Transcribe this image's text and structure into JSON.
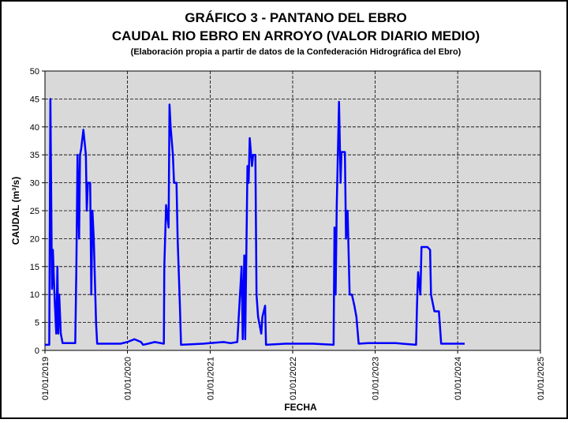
{
  "chart_data": {
    "type": "line",
    "title": "GRÁFICO 3 - PANTANO DEL EBRO",
    "subtitle": "CAUDAL RIO EBRO EN ARROYO (VALOR DIARIO MEDIO)",
    "note": "(Elaboración propia a partir de datos de la Confederación Hidrográfica del Ebro)",
    "x_label": "FECHA",
    "y_label": "CAUDAL  (m³/s)",
    "color": "#0000ff",
    "grid": true,
    "xlim": [
      "2019-01-01",
      "2025-01-01"
    ],
    "xticks": [
      {
        "value": "2019-01-01",
        "label": "01/01/2019"
      },
      {
        "value": "2020-01-01",
        "label": "01/01/2020"
      },
      {
        "value": "2021-01-01",
        "label": "01/01/2021"
      },
      {
        "value": "2022-01-01",
        "label": "01/01/2022"
      },
      {
        "value": "2023-01-01",
        "label": "01/01/2023"
      },
      {
        "value": "2024-01-01",
        "label": "01/01/2024"
      },
      {
        "value": "2025-01-01",
        "label": "01/01/2025"
      }
    ],
    "ylim": [
      0,
      50
    ],
    "yticks": [
      0,
      5,
      10,
      15,
      20,
      25,
      30,
      35,
      40,
      45,
      50
    ],
    "x": [
      "2019-01-01",
      "2019-01-20",
      "2019-01-25",
      "2019-02-01",
      "2019-02-05",
      "2019-02-12",
      "2019-02-20",
      "2019-02-25",
      "2019-03-01",
      "2019-03-05",
      "2019-03-12",
      "2019-03-20",
      "2019-05-15",
      "2019-05-20",
      "2019-05-25",
      "2019-06-01",
      "2019-06-05",
      "2019-06-10",
      "2019-06-20",
      "2019-07-01",
      "2019-07-05",
      "2019-07-10",
      "2019-07-20",
      "2019-07-25",
      "2019-07-30",
      "2019-08-05",
      "2019-08-15",
      "2019-08-20",
      "2019-12-01",
      "2020-01-01",
      "2020-02-01",
      "2020-03-01",
      "2020-03-10",
      "2020-04-01",
      "2020-05-01",
      "2020-06-10",
      "2020-06-12",
      "2020-06-20",
      "2020-07-01",
      "2020-07-05",
      "2020-07-10",
      "2020-07-20",
      "2020-07-25",
      "2020-08-05",
      "2020-08-10",
      "2020-08-20",
      "2020-08-25",
      "2020-12-01",
      "2021-01-01",
      "2021-03-01",
      "2021-04-01",
      "2021-05-01",
      "2021-05-20",
      "2021-05-25",
      "2021-06-01",
      "2021-06-05",
      "2021-06-15",
      "2021-06-20",
      "2021-06-25",
      "2021-07-05",
      "2021-07-10",
      "2021-07-20",
      "2021-07-25",
      "2021-08-01",
      "2021-08-15",
      "2021-08-20",
      "2021-09-01",
      "2021-09-05",
      "2021-12-01",
      "2022-01-01",
      "2022-04-01",
      "2022-07-01",
      "2022-07-05",
      "2022-07-10",
      "2022-07-15",
      "2022-07-25",
      "2022-08-01",
      "2022-08-05",
      "2022-08-20",
      "2022-08-25",
      "2022-09-01",
      "2022-09-10",
      "2022-09-20",
      "2022-10-01",
      "2022-10-10",
      "2022-10-20",
      "2022-12-01",
      "2023-01-01",
      "2023-04-01",
      "2023-07-01",
      "2023-07-05",
      "2023-07-10",
      "2023-07-20",
      "2023-07-25",
      "2023-08-20",
      "2023-09-01",
      "2023-09-05",
      "2023-09-20",
      "2023-10-10",
      "2023-10-20",
      "2024-02-01"
    ],
    "values": [
      1,
      1,
      45,
      11,
      18,
      10,
      3,
      15,
      3,
      10,
      3,
      1.3,
      1.3,
      15,
      35,
      20,
      35,
      36,
      39.5,
      35,
      25,
      30,
      30,
      10,
      25,
      20,
      5,
      1.2,
      1.2,
      1.5,
      2,
      1.5,
      1,
      1.2,
      1.5,
      1.2,
      15,
      26,
      22,
      44,
      40,
      35,
      30,
      30,
      20,
      8,
      1,
      1.2,
      1.3,
      1.5,
      1.3,
      1.5,
      15,
      2,
      17,
      2,
      33,
      30,
      38,
      33,
      35,
      35,
      10,
      6,
      3,
      6,
      8,
      1,
      1.2,
      1.2,
      1.2,
      1,
      22,
      10,
      26,
      44.5,
      30,
      35.5,
      35.5,
      20,
      25,
      10,
      10,
      8,
      6,
      1.2,
      1.3,
      1.3,
      1.3,
      1,
      8,
      14,
      10,
      18.5,
      18.5,
      18,
      10,
      7,
      7,
      1.2,
      1.2
    ]
  }
}
